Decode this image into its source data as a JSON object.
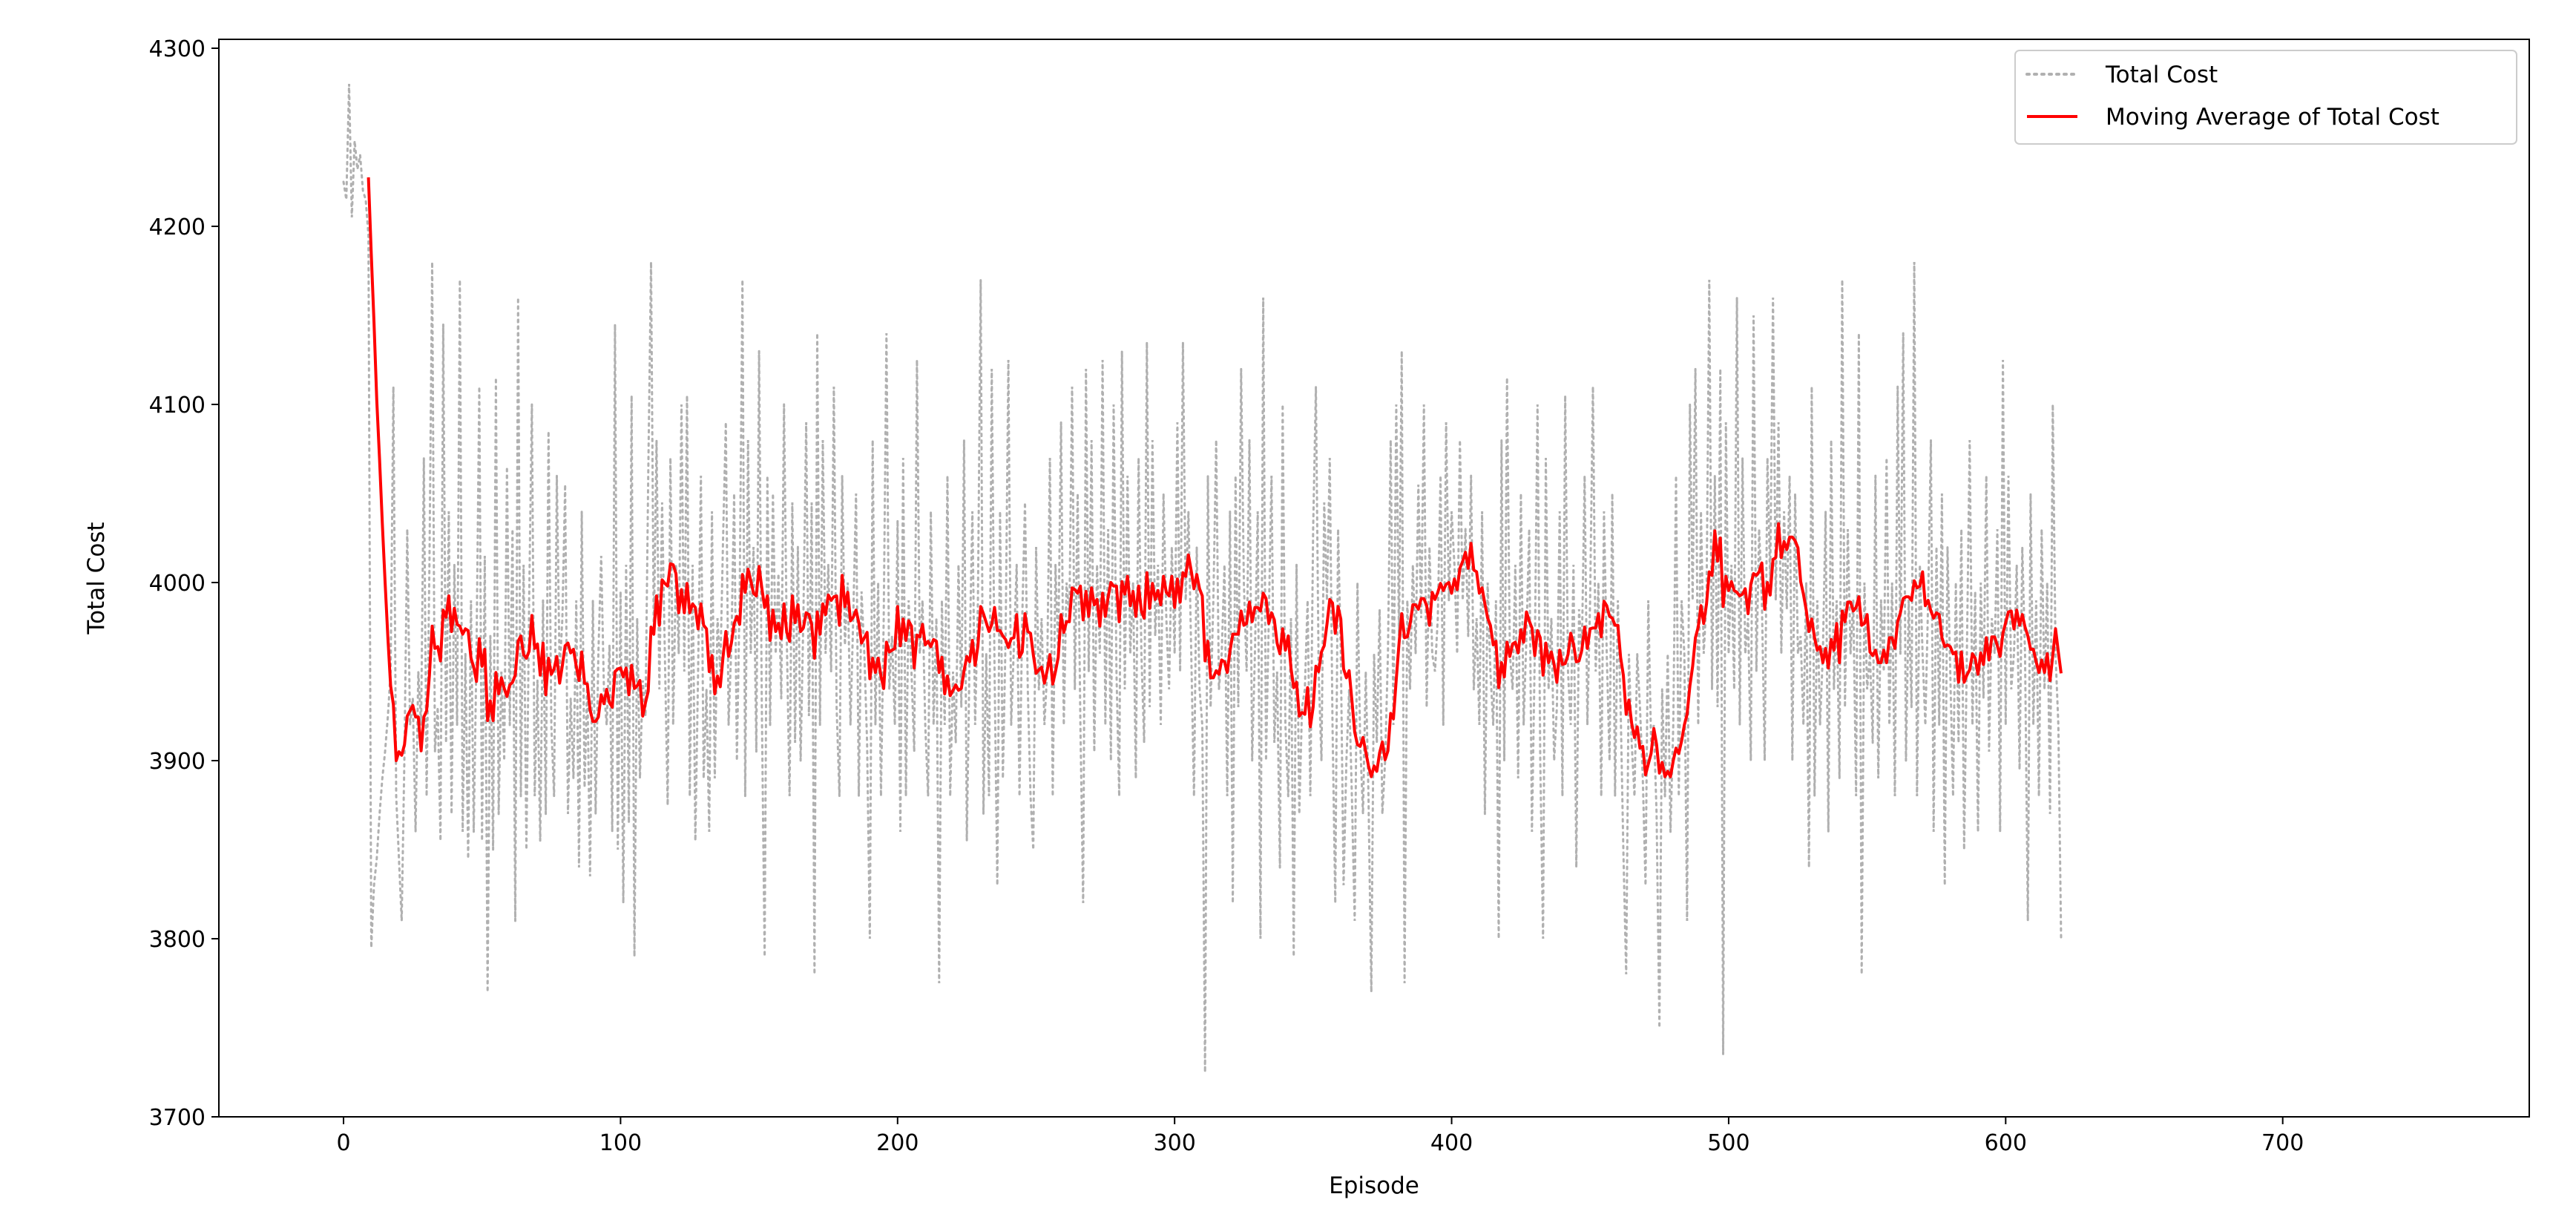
{
  "chart_data": {
    "type": "line",
    "title": "",
    "xlabel": "Episode",
    "ylabel": "Total Cost",
    "xlim": [
      -45,
      789
    ],
    "ylim": [
      3700,
      4305
    ],
    "x_ticks": [
      0,
      100,
      200,
      300,
      400,
      500,
      600,
      700
    ],
    "y_ticks": [
      3700,
      3800,
      3900,
      4000,
      4100,
      4200,
      4300
    ],
    "grid": false,
    "legend_position": "top-right",
    "series": [
      {
        "name": "Total Cost",
        "style": "dotted",
        "color": "#b0b0b0",
        "x_start": 0,
        "x_step": 1,
        "values": [
          4225,
          4215,
          4280,
          4205,
          4248,
          4232,
          4240,
          4220,
          4215,
          4195,
          3795,
          3830,
          3845,
          3870,
          3890,
          3905,
          3925,
          3950,
          4110,
          3880,
          3845,
          3810,
          3905,
          4030,
          3920,
          3935,
          3860,
          3950,
          3920,
          4070,
          3880,
          4010,
          4180,
          3905,
          3930,
          3855,
          4145,
          3910,
          4040,
          3870,
          4010,
          3920,
          4170,
          3860,
          3960,
          3845,
          3990,
          3860,
          3960,
          4110,
          3855,
          4015,
          3770,
          3970,
          3850,
          4115,
          3870,
          3950,
          3900,
          4065,
          3920,
          4030,
          3810,
          4160,
          3880,
          4010,
          3850,
          3990,
          4100,
          3880,
          3945,
          3855,
          3990,
          3870,
          4085,
          3920,
          3880,
          4060,
          3950,
          3980,
          4055,
          3870,
          3935,
          3890,
          3990,
          3840,
          4040,
          3885,
          3945,
          3835,
          3990,
          3870,
          3960,
          4015,
          3940,
          3920,
          3965,
          3860,
          4145,
          3850,
          3995,
          3820,
          4010,
          3865,
          4105,
          3790,
          3980,
          3890,
          3945,
          3925,
          4060,
          4180,
          3970,
          4080,
          3940,
          4045,
          3960,
          3875,
          4070,
          3920,
          4010,
          3960,
          4100,
          3950,
          4105,
          3880,
          4010,
          3855,
          3950,
          4060,
          3890,
          3940,
          3860,
          4040,
          3890,
          3980,
          3950,
          4025,
          4090,
          3920,
          3965,
          4050,
          3900,
          3995,
          4170,
          3880,
          4080,
          3960,
          4020,
          3905,
          4130,
          3930,
          3790,
          4060,
          3920,
          4050,
          3960,
          4005,
          3935,
          4100,
          3970,
          3880,
          4045,
          3910,
          4020,
          3900,
          3980,
          4090,
          3925,
          4045,
          3780,
          4140,
          3920,
          4080,
          3960,
          4010,
          3950,
          4110,
          3930,
          3880,
          4060,
          3965,
          4000,
          3920,
          3980,
          4050,
          3880,
          3995,
          3960,
          3910,
          3800,
          4080,
          3920,
          4000,
          3880,
          3980,
          4140,
          3940,
          3970,
          3920,
          4035,
          3860,
          4070,
          3880,
          3990,
          3950,
          3905,
          4125,
          3960,
          3990,
          3920,
          3880,
          4040,
          3920,
          3980,
          3775,
          3990,
          3920,
          4060,
          3880,
          3950,
          3910,
          4010,
          3930,
          4080,
          3855,
          3960,
          4040,
          3920,
          3990,
          4170,
          3870,
          3960,
          3880,
          4120,
          3950,
          3830,
          4040,
          3890,
          3970,
          4125,
          3920,
          3965,
          4010,
          3880,
          3980,
          4045,
          3940,
          3880,
          3850,
          4020,
          3940,
          3980,
          3920,
          3950,
          4070,
          3880,
          4010,
          3960,
          4090,
          3920,
          4000,
          3980,
          4110,
          3940,
          4050,
          3920,
          3820,
          4120,
          3950,
          4080,
          3905,
          4010,
          3960,
          4125,
          3920,
          4030,
          3900,
          4100,
          3950,
          3880,
          4130,
          3940,
          4060,
          3960,
          4000,
          3890,
          4070,
          3960,
          3910,
          4135,
          3930,
          4080,
          3970,
          4010,
          3920,
          4050,
          3980,
          3940,
          4020,
          3960,
          4090,
          3950,
          4135,
          3990,
          4040,
          3960,
          3880,
          4020,
          3940,
          3920,
          3725,
          4060,
          3930,
          3990,
          4080,
          3940,
          3960,
          4010,
          3880,
          4040,
          3820,
          4060,
          3930,
          4120,
          4000,
          3950,
          4080,
          3900,
          3960,
          4040,
          3800,
          4160,
          3900,
          3980,
          4060,
          3910,
          3950,
          3840,
          4100,
          3920,
          3880,
          3980,
          3790,
          4010,
          3870,
          3930,
          3940,
          3990,
          3880,
          4030,
          4110,
          3950,
          3900,
          4045,
          3990,
          4070,
          3920,
          3820,
          4030,
          3960,
          3830,
          3900,
          3940,
          3880,
          3810,
          4000,
          3910,
          3870,
          3950,
          3880,
          3770,
          3960,
          3910,
          3985,
          3870,
          3900,
          3960,
          4080,
          3920,
          4100,
          3970,
          4130,
          3775,
          3990,
          3940,
          4010,
          3960,
          4055,
          3980,
          4100,
          3930,
          4020,
          3960,
          3950,
          3980,
          4060,
          3920,
          4090,
          3990,
          4040,
          4010,
          3960,
          4080,
          3990,
          4030,
          3970,
          4060,
          3940,
          3980,
          3920,
          4040,
          3870,
          4000,
          3950,
          3920,
          3990,
          3800,
          4080,
          3900,
          4115,
          3960,
          3940,
          4010,
          3890,
          4050,
          3920,
          3970,
          4030,
          3860,
          3960,
          4100,
          3900,
          3800,
          4070,
          3940,
          3980,
          3900,
          3930,
          4040,
          3880,
          4105,
          3950,
          3920,
          4010,
          3840,
          3985,
          3960,
          4060,
          3920,
          3990,
          4110,
          3950,
          4000,
          3880,
          4040,
          3960,
          3900,
          4050,
          3880,
          3990,
          3930,
          3850,
          3780,
          3960,
          3910,
          3880,
          3960,
          3930,
          3890,
          3830,
          3990,
          3910,
          3920,
          3870,
          3750,
          3940,
          3880,
          3960,
          3860,
          3920,
          4060,
          3880,
          3990,
          3960,
          3810,
          4100,
          3990,
          4120,
          3920,
          4040,
          3960,
          3990,
          4170,
          3940,
          4060,
          3930,
          4120,
          3735,
          4090,
          3960,
          4010,
          3940,
          4160,
          3920,
          4070,
          3960,
          3980,
          3900,
          4150,
          3950,
          4030,
          3990,
          3900,
          4070,
          4000,
          4160,
          3990,
          4090,
          3960,
          4040,
          3985,
          4060,
          3900,
          4050,
          3960,
          3970,
          3920,
          4000,
          3840,
          4110,
          3880,
          3990,
          3920,
          3960,
          4040,
          3860,
          4080,
          3940,
          3990,
          3890,
          4170,
          3930,
          4030,
          3960,
          3990,
          3880,
          4140,
          3780,
          4000,
          3940,
          3960,
          3910,
          4060,
          3890,
          3990,
          3950,
          4070,
          3920,
          4000,
          3880,
          4110,
          3960,
          4140,
          3900,
          3990,
          3930,
          4180,
          3880,
          4010,
          3960,
          3920,
          3990,
          4080,
          3860,
          4020,
          3920,
          4050,
          3830,
          4020,
          3950,
          3880,
          4000,
          3910,
          4030,
          3850,
          3960,
          4080,
          3920,
          3995,
          3860,
          4000,
          3935,
          4060,
          3905,
          3980,
          3960,
          4030,
          3860,
          4125,
          3920,
          4060,
          3940,
          3960,
          4010,
          3895,
          4020,
          3960,
          3810,
          4050,
          3920,
          3990,
          3880,
          4030,
          3940,
          4000,
          3870,
          4100,
          3960,
          3920,
          3800
        ]
      },
      {
        "name": "Moving Average of Total Cost",
        "style": "solid",
        "color": "#ff0000",
        "x_start": 9,
        "x_step": 1,
        "window": 10
      }
    ]
  }
}
